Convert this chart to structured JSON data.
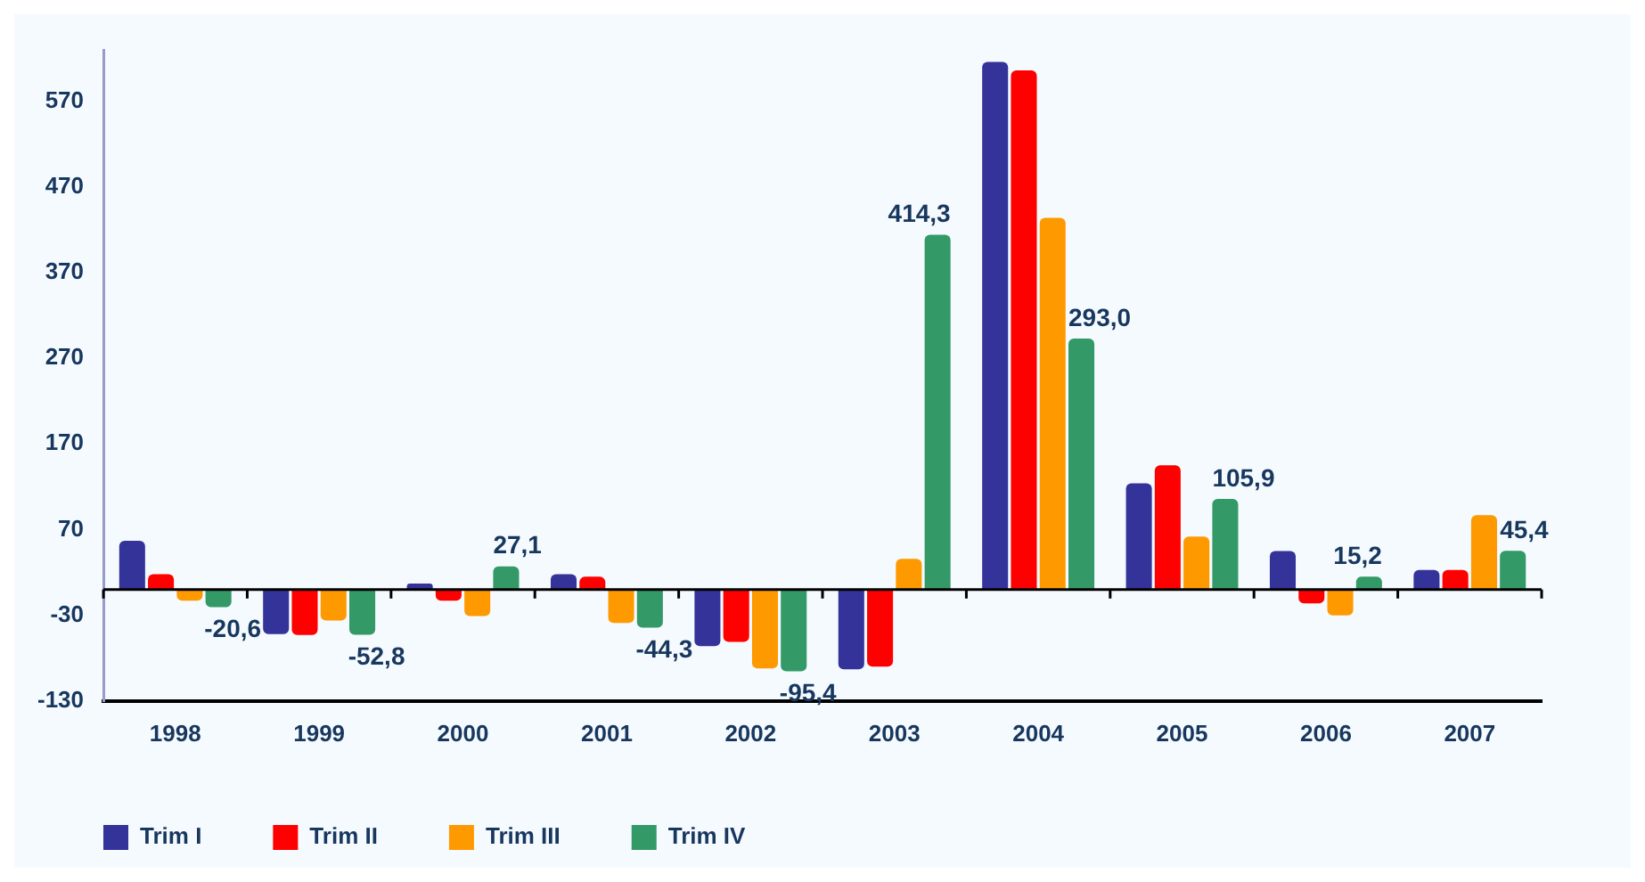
{
  "chart_data": {
    "type": "bar",
    "categories": [
      "1998",
      "1999",
      "2000",
      "2001",
      "2002",
      "2003",
      "2004",
      "2005",
      "2006",
      "2007"
    ],
    "series": [
      {
        "name": "Trim I",
        "color": "#333399",
        "values": [
          57,
          -52,
          7,
          18,
          -66,
          -93,
          616,
          124,
          45,
          23
        ]
      },
      {
        "name": "Trim II",
        "color": "#ff0000",
        "values": [
          18,
          -53,
          -13,
          15,
          -61,
          -90,
          606,
          145,
          -16,
          23
        ]
      },
      {
        "name": "Trim III",
        "color": "#ff9900",
        "values": [
          -13,
          -36,
          -31,
          -39,
          -92,
          36,
          434,
          62,
          -30,
          87
        ]
      },
      {
        "name": "Trim IV",
        "color": "#339966",
        "values": [
          -20.6,
          -52.8,
          27.1,
          -44.3,
          -95.4,
          414.3,
          293.0,
          105.9,
          15.2,
          45.4
        ],
        "value_labels": [
          "-20,6",
          "-52,8",
          "27,1",
          "-44,3",
          "-95,4",
          "414,3",
          "293,0",
          "105,9",
          "15,2",
          "45,4"
        ]
      }
    ],
    "ylim": [
      -130,
      630
    ],
    "yticks": [
      -130,
      -30,
      70,
      170,
      270,
      370,
      470,
      570
    ],
    "grid": false,
    "legend": "bottom",
    "ref_lines": [
      {
        "axis": "y",
        "value": 0
      }
    ]
  }
}
